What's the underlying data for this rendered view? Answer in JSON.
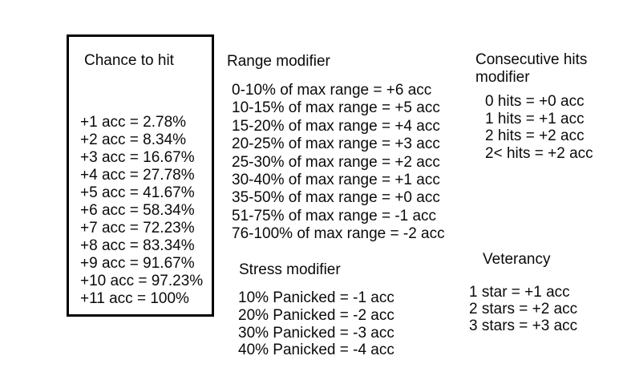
{
  "page": {
    "background_color": "#ffffff",
    "text_color": "#0a0a0a",
    "box_border_color": "#000000"
  },
  "chance_to_hit": {
    "title": "Chance to hit",
    "rows": [
      "+1 acc = 2.78%",
      "+2 acc = 8.34%",
      "+3 acc = 16.67%",
      "+4 acc = 27.78%",
      "+5 acc = 41.67%",
      "+6 acc = 58.34%",
      "+7 acc = 72.23%",
      "+8 acc = 83.34%",
      "+9 acc = 91.67%",
      "+10 acc = 97.23%",
      "+11 acc = 100%"
    ]
  },
  "range_modifier": {
    "title": "Range modifier",
    "rows": [
      "0-10% of max range = +6 acc",
      "10-15% of max range = +5 acc",
      "15-20% of max range = +4 acc",
      "20-25% of max range = +3 acc",
      "25-30% of max range = +2 acc",
      "30-40% of max range = +1 acc",
      "35-50% of max range = +0 acc",
      "51-75% of max range = -1 acc",
      "76-100% of max range = -2 acc"
    ]
  },
  "consecutive_hits": {
    "title": "Consecutive hits modifier",
    "rows": [
      "0 hits = +0 acc",
      "1 hits = +1 acc",
      "2 hits = +2 acc",
      "2< hits = +2 acc"
    ]
  },
  "stress_modifier": {
    "title": "Stress modifier",
    "rows": [
      "10% Panicked = -1 acc",
      "20% Panicked = -2 acc",
      "30% Panicked = -3 acc",
      "40% Panicked = -4 acc"
    ]
  },
  "veterancy": {
    "title": "Veterancy",
    "rows": [
      "1 star = +1 acc",
      "2 stars = +2 acc",
      "3 stars = +3 acc"
    ]
  }
}
